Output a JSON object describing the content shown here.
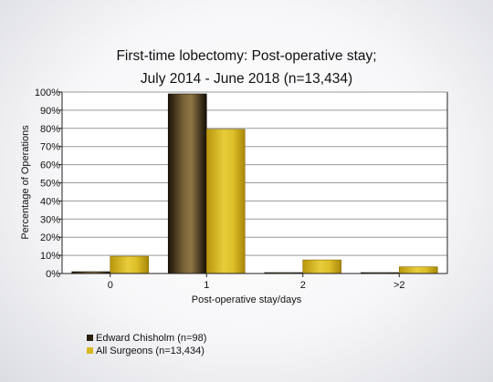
{
  "chart_data": {
    "type": "bar",
    "title": [
      "First-time lobectomy: Post-operative stay;",
      "July 2014 - June 2018 (n=13,434)"
    ],
    "xlabel": "Post-operative stay/days",
    "ylabel": "Percentage of Operations",
    "categories": [
      "0",
      "1",
      "2",
      ">2"
    ],
    "ylim": [
      0,
      100
    ],
    "yticks": [
      "0%",
      "10%",
      "20%",
      "30%",
      "40%",
      "50%",
      "60%",
      "70%",
      "80%",
      "90%",
      "100%"
    ],
    "grid": "horizontal",
    "legend_position": "bottom-left",
    "series": [
      {
        "name": "Edward Chisholm (n=98)",
        "values": [
          1,
          99,
          0.2,
          0.2
        ],
        "color": "#3a2a12"
      },
      {
        "name": "All Surgeons (n=13,434)",
        "values": [
          9.5,
          79.5,
          7.5,
          3.7
        ],
        "color": "#d4b21c"
      }
    ]
  }
}
